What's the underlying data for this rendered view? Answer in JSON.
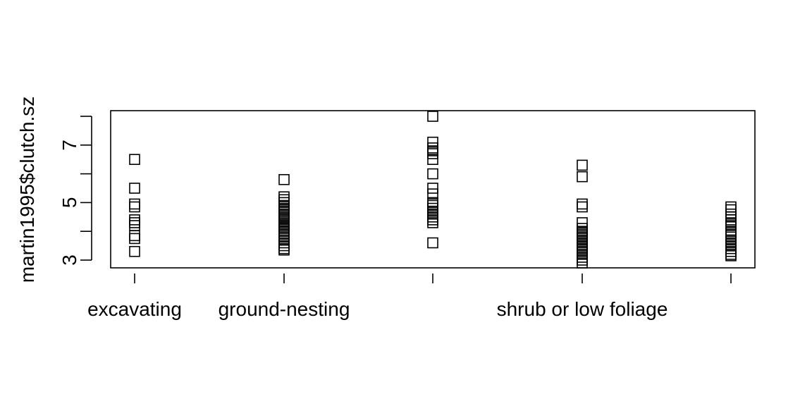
{
  "chart_data": {
    "type": "scatter",
    "ylabel": "martin1995$clutch.sz",
    "xlabel": "",
    "title": "",
    "ylim": [
      2.72,
      8.2
    ],
    "yticks": [
      3,
      4,
      5,
      6,
      7,
      8
    ],
    "yticklabels": [
      "3",
      "",
      "5",
      "",
      "7",
      ""
    ],
    "categories": [
      "excavating",
      "ground-nesting",
      "",
      "shrub or low foliage",
      ""
    ],
    "marker": "open-square",
    "groups": [
      {
        "values": [
          6.5,
          5.5,
          4.95,
          4.85,
          4.4,
          4.3,
          4.2,
          3.85,
          3.75,
          3.3
        ]
      },
      {
        "values": [
          5.8,
          5.2,
          5.1,
          5.0,
          4.9,
          4.8,
          4.75,
          4.7,
          4.6,
          4.55,
          4.5,
          4.45,
          4.4,
          4.35,
          4.3,
          4.25,
          4.2,
          4.15,
          4.1,
          4.0,
          3.9,
          3.8,
          3.7,
          3.6,
          3.5,
          3.4,
          3.35
        ]
      },
      {
        "values": [
          8.0,
          7.1,
          6.9,
          6.8,
          6.7,
          6.5,
          6.0,
          5.5,
          5.3,
          5.0,
          4.9,
          4.8,
          4.7,
          4.6,
          4.5,
          4.4,
          4.3,
          3.6
        ]
      },
      {
        "values": [
          6.3,
          5.9,
          4.95,
          4.85,
          4.3,
          4.1,
          4.0,
          3.95,
          3.9,
          3.85,
          3.8,
          3.7,
          3.6,
          3.5,
          3.45,
          3.4,
          3.35,
          3.3,
          3.2,
          3.1,
          3.0,
          2.9
        ]
      },
      {
        "values": [
          4.85,
          4.75,
          4.6,
          4.5,
          4.4,
          4.3,
          4.2,
          4.0,
          3.9,
          3.8,
          3.7,
          3.6,
          3.5,
          3.4,
          3.3,
          3.2,
          3.15
        ]
      }
    ]
  }
}
